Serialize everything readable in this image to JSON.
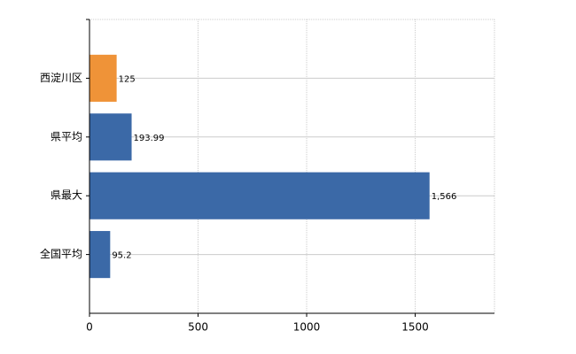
{
  "chart_data": {
    "type": "hbar",
    "categories": [
      "西淀川区",
      "県平均",
      "県最大",
      "全国平均"
    ],
    "values": [
      125,
      193.99,
      1566,
      95.2
    ],
    "value_labels": [
      "125",
      "193.99",
      "1,566",
      "95.2"
    ],
    "colors": [
      "#ef9338",
      "#3b69a7",
      "#3b69a7",
      "#3b69a7"
    ],
    "xlim": [
      0,
      1865
    ],
    "xticks": [
      0,
      500,
      1000,
      1500
    ],
    "grid": true
  }
}
